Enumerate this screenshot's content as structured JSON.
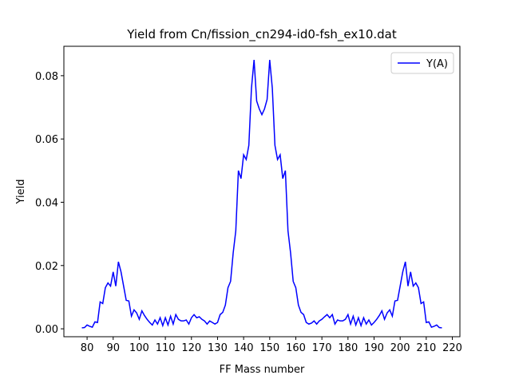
{
  "chart_data": {
    "type": "line",
    "title": "Yield from  Cn/fission_cn294-id0-fsh_ex10.dat",
    "x_label": "FF Mass number",
    "y_label": "Yield",
    "x": [
      78,
      79,
      80,
      81,
      82,
      83,
      84,
      85,
      86,
      87,
      88,
      89,
      90,
      91,
      92,
      93,
      94,
      95,
      96,
      97,
      98,
      99,
      100,
      101,
      102,
      103,
      104,
      105,
      106,
      107,
      108,
      109,
      110,
      111,
      112,
      113,
      114,
      115,
      116,
      117,
      118,
      119,
      120,
      121,
      122,
      123,
      124,
      125,
      126,
      127,
      128,
      129,
      130,
      131,
      132,
      133,
      134,
      135,
      136,
      137,
      138,
      139,
      140,
      141,
      142,
      143,
      144,
      145,
      146,
      147,
      148,
      149,
      150,
      151,
      152,
      153,
      154,
      155,
      156,
      157,
      158,
      159,
      160,
      161,
      162,
      163,
      164,
      165,
      166,
      167,
      168,
      169,
      170,
      171,
      172,
      173,
      174,
      175,
      176,
      177,
      178,
      179,
      180,
      181,
      182,
      183,
      184,
      185,
      186,
      187,
      188,
      189,
      190,
      191,
      192,
      193,
      194,
      195,
      196,
      197,
      198,
      199,
      200,
      201,
      202,
      203,
      204,
      205,
      206,
      207,
      208,
      209,
      210,
      211,
      212,
      213,
      214,
      215,
      216
    ],
    "series": [
      {
        "name": "Y(A)",
        "color": "#0000ff",
        "values": [
          0.0003,
          0.0004,
          0.0012,
          0.0008,
          0.0005,
          0.0022,
          0.002,
          0.0085,
          0.008,
          0.013,
          0.0145,
          0.0135,
          0.018,
          0.0135,
          0.0212,
          0.018,
          0.0135,
          0.009,
          0.0088,
          0.004,
          0.006,
          0.005,
          0.003,
          0.0057,
          0.0042,
          0.003,
          0.002,
          0.0012,
          0.0028,
          0.0015,
          0.0035,
          0.001,
          0.0035,
          0.0012,
          0.004,
          0.0015,
          0.0045,
          0.003,
          0.0025,
          0.0025,
          0.0028,
          0.0015,
          0.0035,
          0.0045,
          0.0035,
          0.0038,
          0.003,
          0.0025,
          0.0015,
          0.0025,
          0.002,
          0.0015,
          0.002,
          0.0045,
          0.0052,
          0.0075,
          0.013,
          0.015,
          0.024,
          0.031,
          0.05,
          0.0475,
          0.055,
          0.0535,
          0.058,
          0.076,
          0.085,
          0.072,
          0.0695,
          0.0677,
          0.0695,
          0.0725,
          0.085,
          0.076,
          0.058,
          0.0535,
          0.055,
          0.0475,
          0.05,
          0.031,
          0.024,
          0.015,
          0.013,
          0.0075,
          0.0052,
          0.0045,
          0.002,
          0.0015,
          0.0018,
          0.0025,
          0.0015,
          0.0025,
          0.003,
          0.0038,
          0.0045,
          0.0035,
          0.0045,
          0.0015,
          0.0028,
          0.0025,
          0.0025,
          0.003,
          0.0045,
          0.0015,
          0.004,
          0.0012,
          0.0035,
          0.001,
          0.0035,
          0.0015,
          0.0028,
          0.0012,
          0.002,
          0.003,
          0.0042,
          0.0057,
          0.003,
          0.005,
          0.006,
          0.004,
          0.0088,
          0.009,
          0.0135,
          0.018,
          0.0212,
          0.0135,
          0.018,
          0.0135,
          0.0145,
          0.013,
          0.008,
          0.0085,
          0.002,
          0.0022,
          0.0005,
          0.0008,
          0.0012,
          0.0004,
          0.0003
        ]
      }
    ],
    "xlim": [
      71.1,
      222.9
    ],
    "ylim": [
      -0.0025,
      0.0893
    ],
    "xticks": [
      80,
      90,
      100,
      110,
      120,
      130,
      140,
      150,
      160,
      170,
      180,
      190,
      200,
      210,
      220
    ],
    "yticks": [
      {
        "value": 0,
        "label": "0.00"
      },
      {
        "value": 0.02,
        "label": "0.02"
      },
      {
        "value": 0.04,
        "label": "0.04"
      },
      {
        "value": 0.06,
        "label": "0.06"
      },
      {
        "value": 0.08,
        "label": "0.08"
      }
    ],
    "legend": "upper right"
  }
}
